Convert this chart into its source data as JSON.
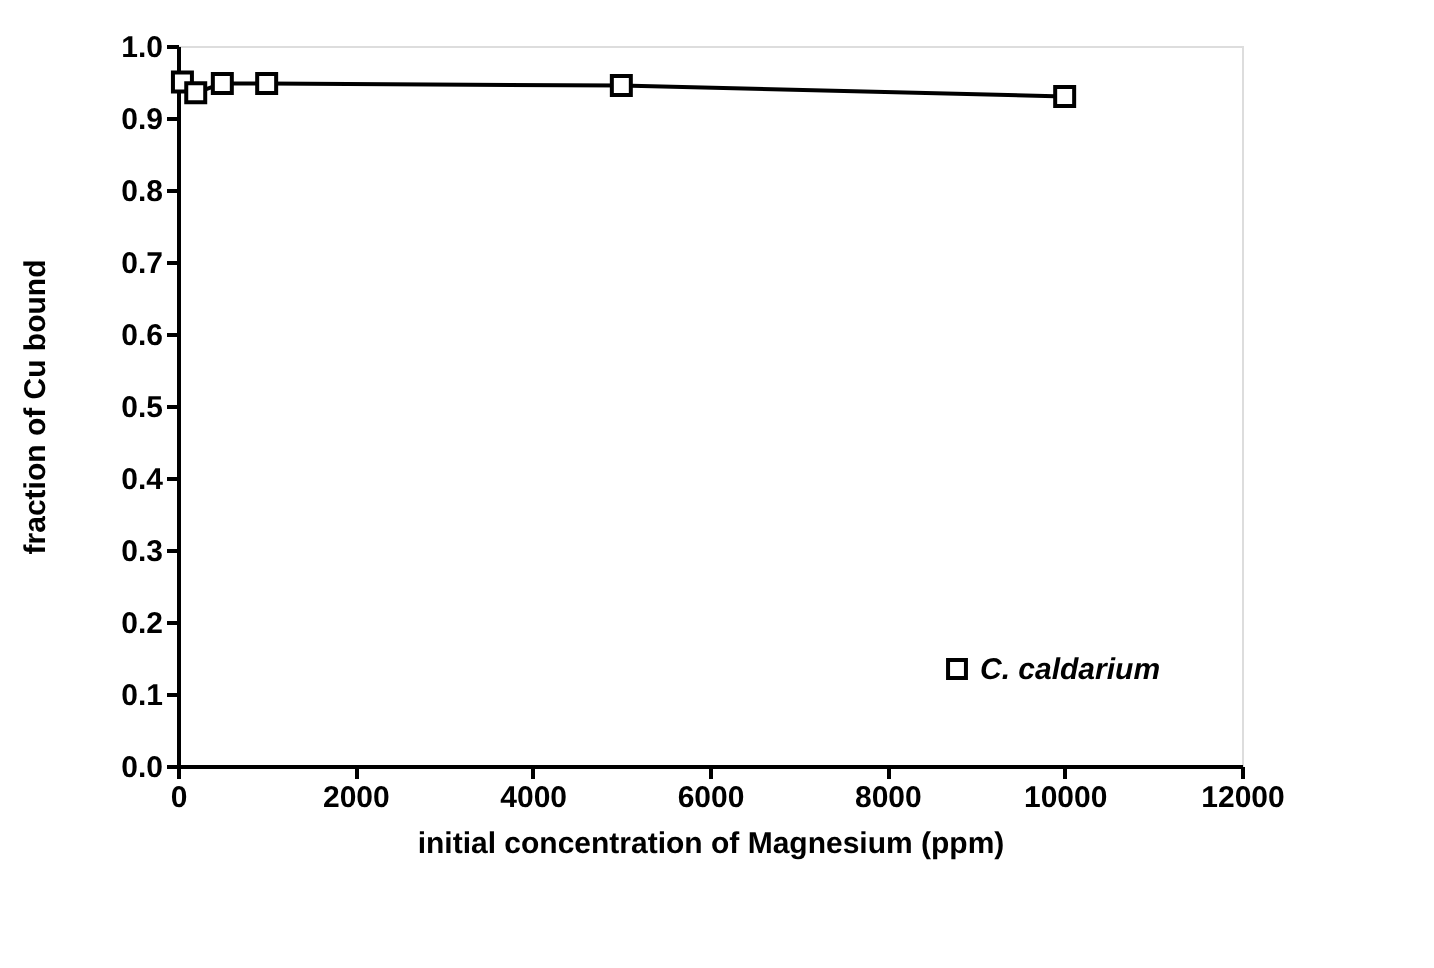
{
  "chart_data": {
    "type": "line",
    "xlabel": "initial concentration of Magnesium (ppm)",
    "ylabel": "fraction of Cu bound",
    "x": [
      50,
      200,
      500,
      1000,
      5000,
      10000
    ],
    "series": [
      {
        "name": "C. caldarium",
        "color": "#000000",
        "values": [
          0.95,
          0.935,
          0.948,
          0.948,
          0.945,
          0.93
        ]
      }
    ],
    "xlim": [
      0,
      12000
    ],
    "xticks": [
      0,
      2000,
      4000,
      6000,
      8000,
      10000,
      12000
    ],
    "ylim": [
      0,
      1.0
    ],
    "yticks": [
      {
        "value": 0,
        "label": "0.0"
      },
      0.1,
      0.2,
      0.3,
      0.4,
      0.5,
      0.6,
      0.7,
      0.8,
      0.9,
      {
        "value": 1.0,
        "label": "1.0"
      }
    ],
    "grid": false,
    "legend": "bottom right",
    "marker": "square",
    "line_style": "solid"
  }
}
